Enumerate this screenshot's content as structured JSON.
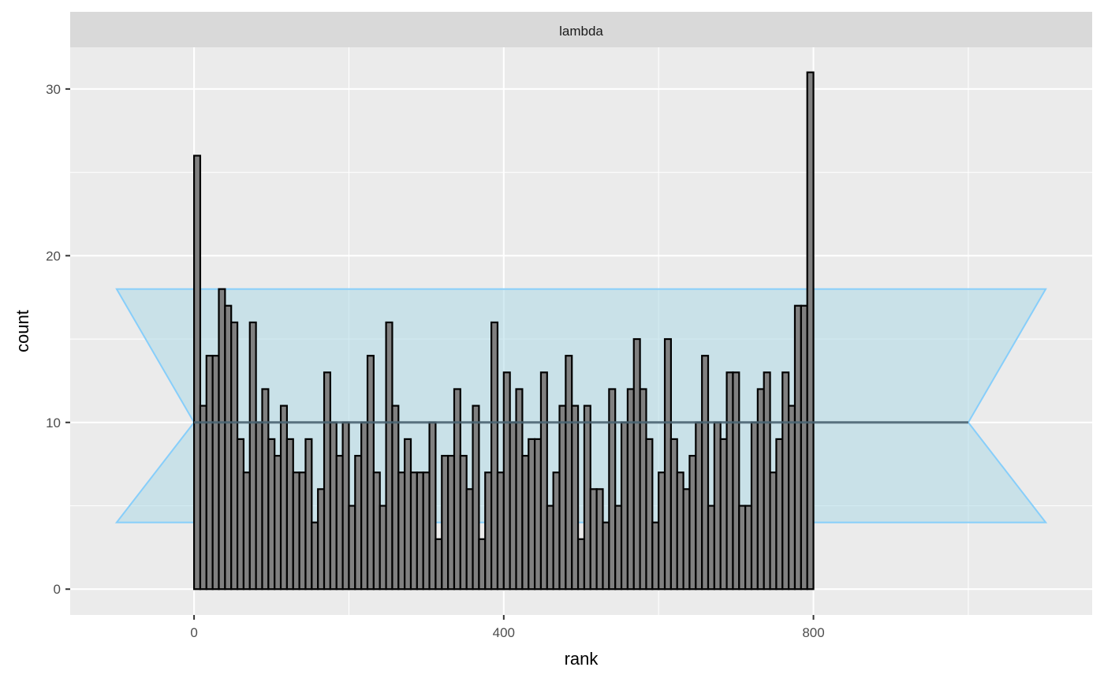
{
  "chart_data": {
    "type": "bar",
    "facet_label": "lambda",
    "xlabel": "rank",
    "ylabel": "count",
    "x_ticks": [
      0,
      400,
      800
    ],
    "y_ticks": [
      0,
      10,
      20,
      30
    ],
    "xlim": [
      -160,
      1160
    ],
    "ylim": [
      -1.55,
      32.5
    ],
    "bin_width": 8,
    "bin_starts_from": 0,
    "values": [
      26,
      11,
      14,
      14,
      18,
      17,
      16,
      9,
      7,
      16,
      10,
      12,
      9,
      8,
      11,
      9,
      7,
      7,
      9,
      4,
      6,
      13,
      10,
      8,
      10,
      5,
      8,
      10,
      14,
      7,
      5,
      16,
      11,
      7,
      9,
      7,
      7,
      7,
      10,
      3,
      8,
      8,
      12,
      8,
      6,
      11,
      3,
      7,
      16,
      7,
      13,
      10,
      12,
      8,
      9,
      9,
      13,
      5,
      7,
      11,
      14,
      11,
      3,
      11,
      6,
      6,
      4,
      12,
      5,
      10,
      12,
      15,
      12,
      9,
      4,
      7,
      15,
      9,
      7,
      6,
      8,
      10,
      14,
      5,
      10,
      9,
      13,
      13,
      5,
      5,
      10,
      12,
      13,
      7,
      9,
      13,
      11,
      17,
      17,
      31
    ],
    "reference_line": 10,
    "band": {
      "lower": 4,
      "upper": 18,
      "x_start": 0,
      "x_end": 1000,
      "x_outer_left": -100,
      "x_outer_right": 1100
    },
    "colors": {
      "panel_bg": "#ebebeb",
      "grid": "#ffffff",
      "strip_bg": "#d9d9d9",
      "bar_fill": "#808080",
      "bar_stroke": "#000000",
      "band_fill": "#add8e6",
      "band_stroke": "#87cefa",
      "line": "#4a6472"
    }
  }
}
